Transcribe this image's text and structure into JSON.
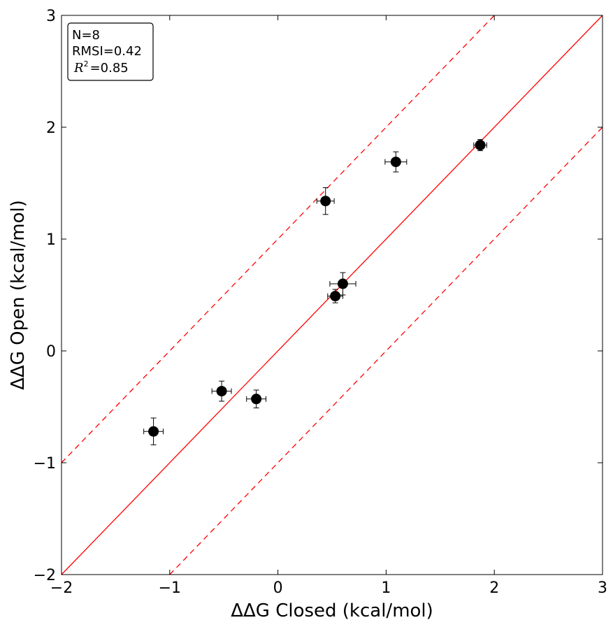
{
  "chart_data": {
    "type": "scatter",
    "title": "",
    "xlabel": "ΔΔG Closed (kcal/mol)",
    "ylabel": "ΔΔG Open (kcal/mol)",
    "xlim": [
      -2,
      3
    ],
    "ylim": [
      -2,
      3
    ],
    "xticks": [
      -2,
      -1,
      0,
      1,
      2,
      3
    ],
    "yticks": [
      -2,
      -1,
      0,
      1,
      2,
      3
    ],
    "xtick_labels": [
      "−2",
      "−1",
      "0",
      "1",
      "2",
      "3"
    ],
    "ytick_labels": [
      "−2",
      "−1",
      "0",
      "1",
      "2",
      "3"
    ],
    "grid": false,
    "series": [
      {
        "marker_color": "#000000",
        "points": [
          {
            "x": -1.15,
            "y": -0.72,
            "xerr": 0.09,
            "yerr": 0.12
          },
          {
            "x": -0.52,
            "y": -0.36,
            "xerr": 0.09,
            "yerr": 0.09
          },
          {
            "x": -0.2,
            "y": -0.43,
            "xerr": 0.09,
            "yerr": 0.08
          },
          {
            "x": 0.44,
            "y": 1.34,
            "xerr": 0.08,
            "yerr": 0.12
          },
          {
            "x": 0.53,
            "y": 0.49,
            "xerr": 0.07,
            "yerr": 0.06
          },
          {
            "x": 0.6,
            "y": 0.6,
            "xerr": 0.12,
            "yerr": 0.1
          },
          {
            "x": 1.09,
            "y": 1.69,
            "xerr": 0.1,
            "yerr": 0.09
          },
          {
            "x": 1.87,
            "y": 1.84,
            "xerr": 0.06,
            "yerr": 0.05
          }
        ]
      }
    ],
    "reference_lines": [
      {
        "kind": "identity",
        "offset": 0,
        "style": "solid",
        "color": "#ff0000"
      },
      {
        "kind": "identity",
        "offset": 1,
        "style": "dashed",
        "color": "#ff0000"
      },
      {
        "kind": "identity",
        "offset": -1,
        "style": "dashed",
        "color": "#ff0000"
      }
    ],
    "annotation": {
      "placement": "top-left",
      "lines": [
        "N=8",
        "RMSI=0.42"
      ],
      "r2_symbol": "R",
      "r2_exponent": "2",
      "r2_value": "=0.85"
    }
  }
}
